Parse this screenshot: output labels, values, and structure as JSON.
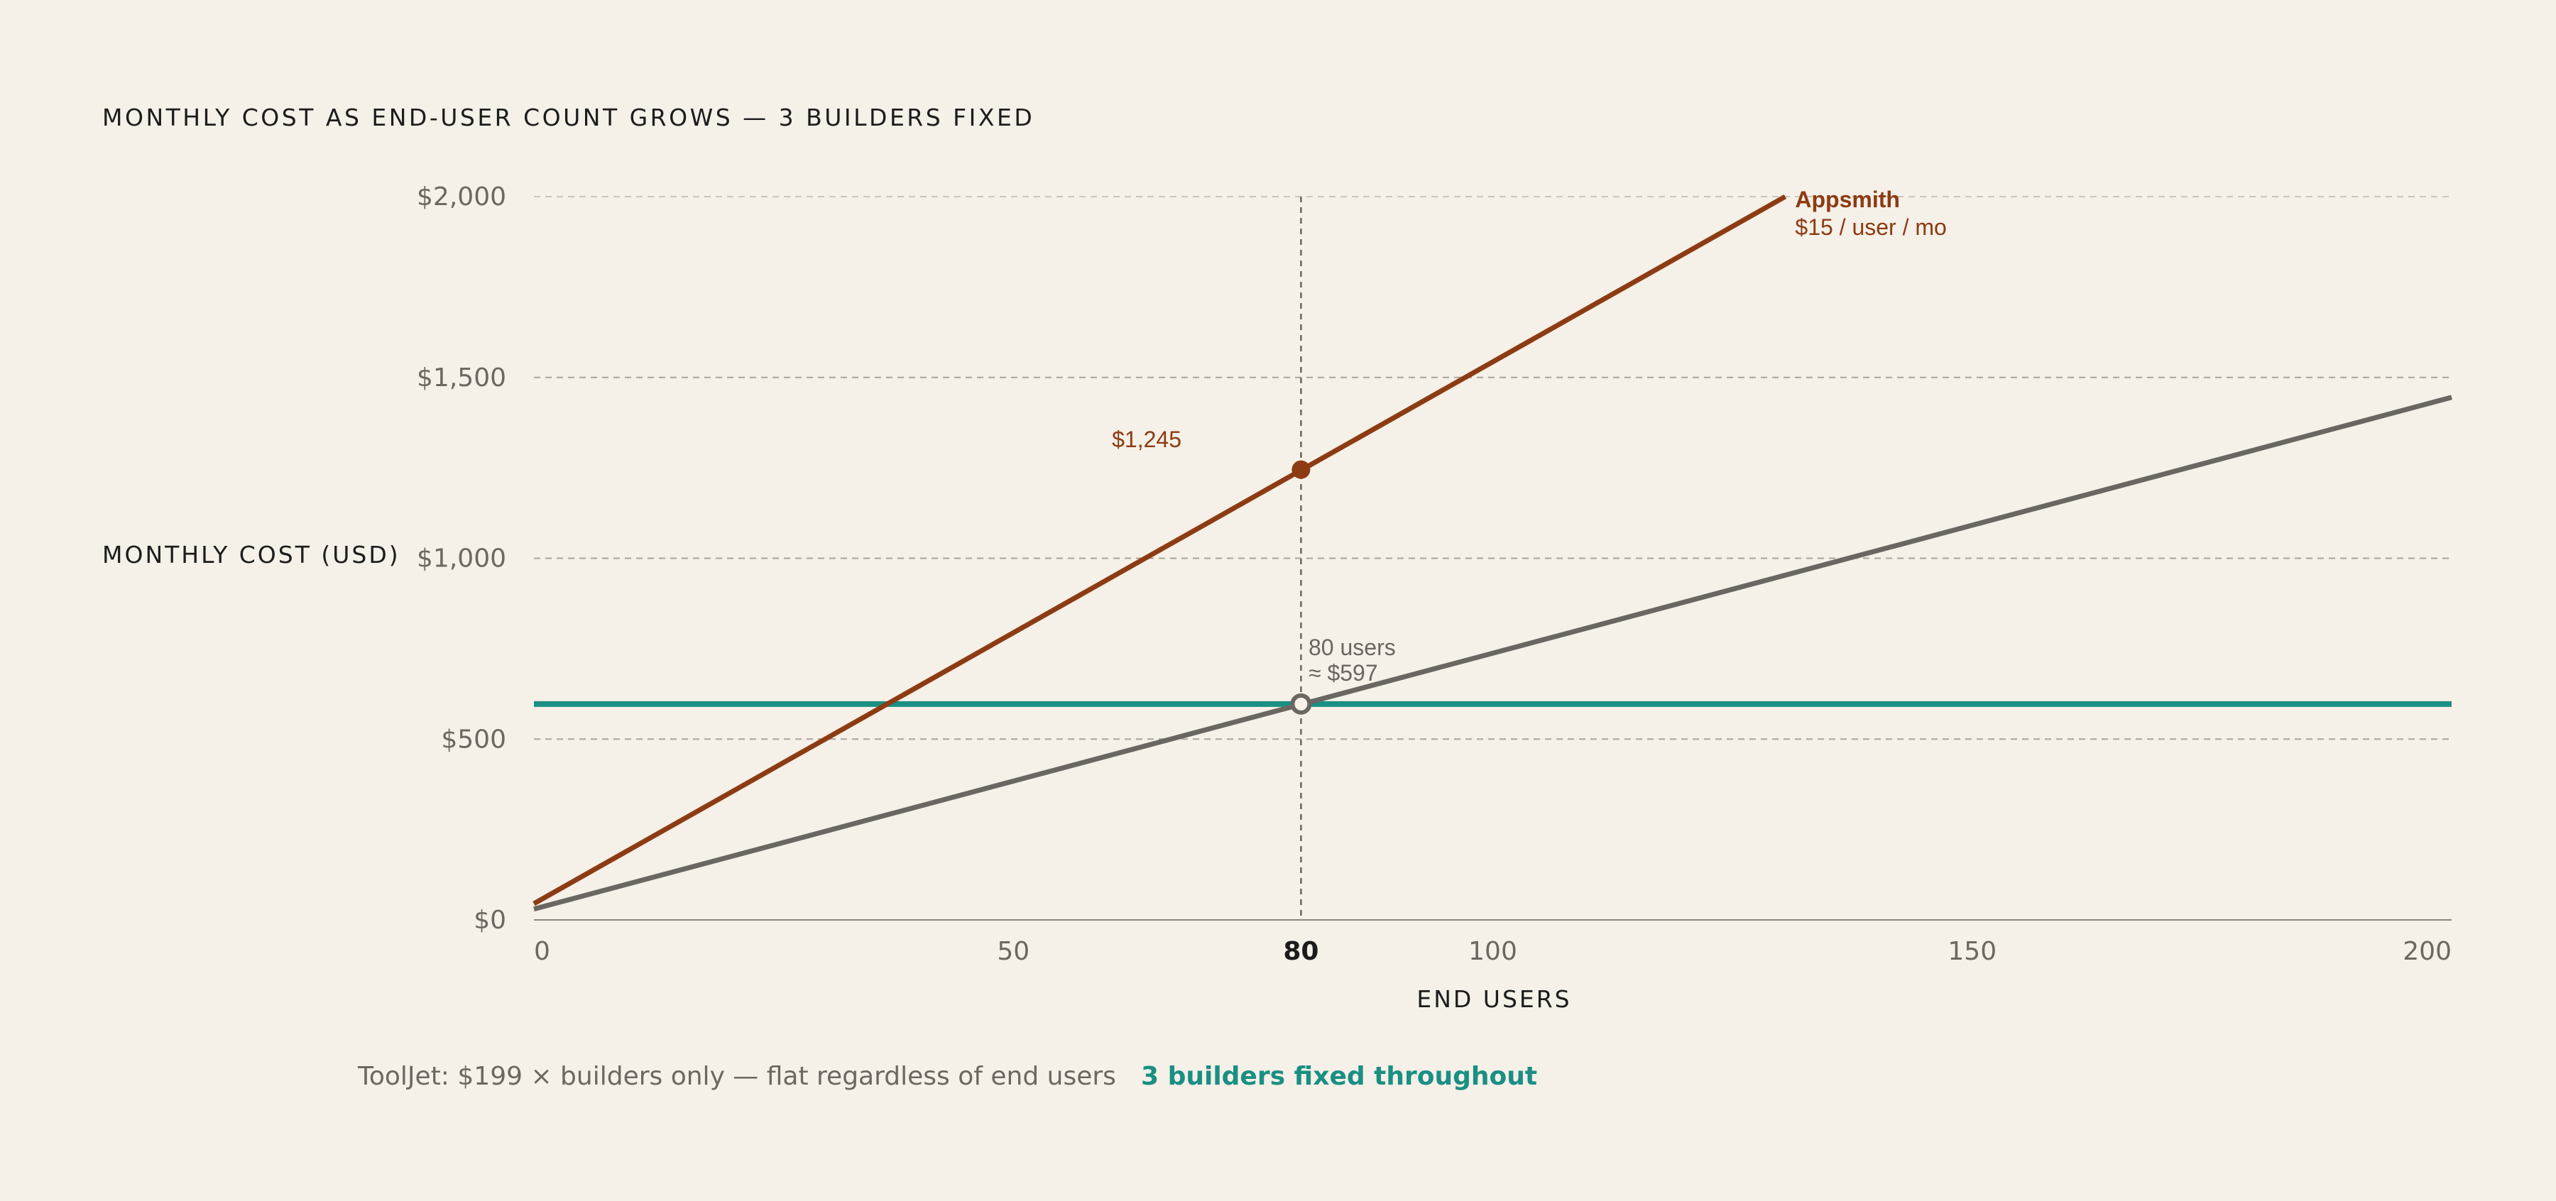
{
  "chart_data": {
    "type": "line",
    "title": "MONTHLY COST AS END-USER COUNT GROWS — 3 BUILDERS FIXED",
    "xlabel": "END USERS",
    "ylabel": "MONTHLY COST (USD)",
    "xlim": [
      0,
      200
    ],
    "ylim": [
      0,
      2000
    ],
    "x_ticks": [
      {
        "value": 0,
        "label": "0"
      },
      {
        "value": 50,
        "label": "50"
      },
      {
        "value": 80,
        "label": "80",
        "bold": true
      },
      {
        "value": 100,
        "label": "100"
      },
      {
        "value": 150,
        "label": "150"
      },
      {
        "value": 200,
        "label": "200"
      }
    ],
    "y_ticks": [
      {
        "value": 0,
        "label": "$0"
      },
      {
        "value": 500,
        "label": "$500"
      },
      {
        "value": 1000,
        "label": "$1,000"
      },
      {
        "value": 1500,
        "label": "$1,500"
      },
      {
        "value": 2000,
        "label": "$2,000"
      }
    ],
    "grid": "horizontal dashed",
    "series": [
      {
        "name": "Appsmith",
        "sublabel": "$15 / user / mo",
        "color": "#8c3b12",
        "x": [
          0,
          130.5
        ],
        "y": [
          45,
          2000
        ]
      },
      {
        "color": "#6a6661",
        "x": [
          0,
          200
        ],
        "y": [
          30,
          1445
        ]
      },
      {
        "color": "#1a8f83",
        "x": [
          0,
          200
        ],
        "y": [
          597,
          597
        ]
      }
    ],
    "reference_line": {
      "x": 80
    },
    "markers": [
      {
        "x": 80,
        "y": 1245,
        "label": "$1,245",
        "color": "#8c3b12",
        "style": "filled"
      },
      {
        "x": 80,
        "y": 597,
        "label_lines": [
          "80 users",
          "≈ $597"
        ],
        "color": "#6a6661",
        "style": "hollow"
      }
    ]
  },
  "footer": {
    "left": "ToolJet: $199 × builders only — flat regardless of end users",
    "right": "3 builders fixed throughout"
  }
}
